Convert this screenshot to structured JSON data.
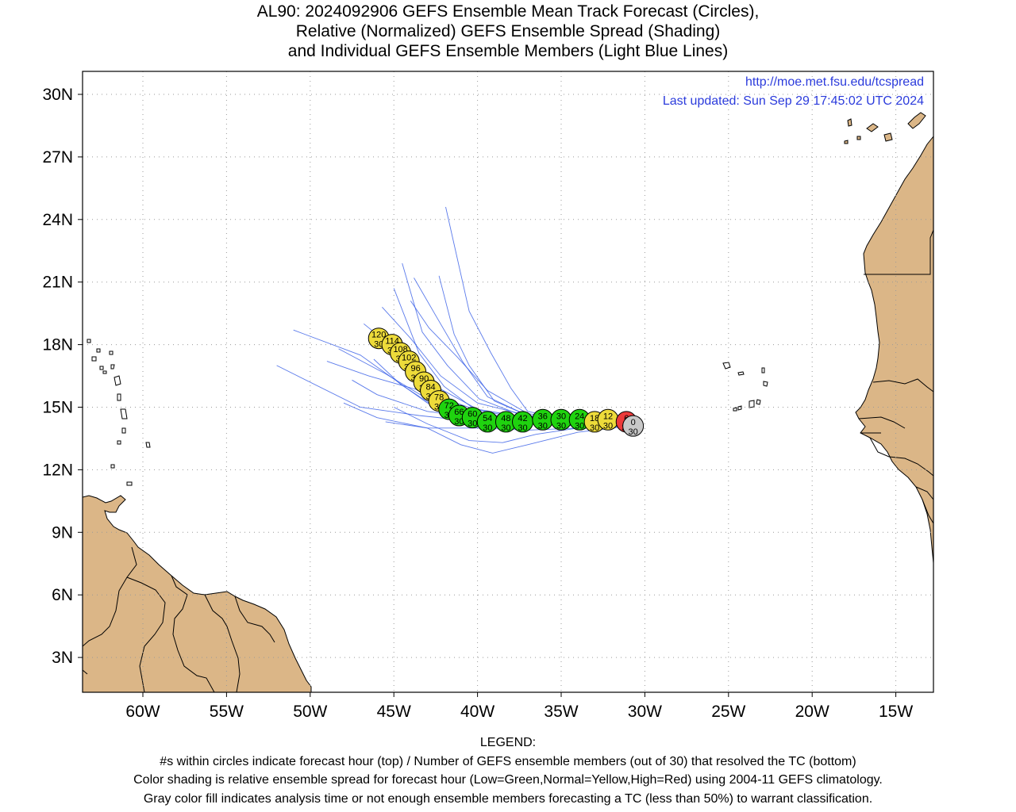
{
  "title": {
    "line1": "AL90: 2024092906 GEFS Ensemble Mean Track Forecast (Circles),",
    "line2": "Relative (Normalized) GEFS Ensemble Spread (Shading)",
    "line3": "and Individual GEFS Ensemble Members (Light Blue Lines)"
  },
  "stamp": {
    "url": "http://moe.met.fsu.edu/tcspread",
    "updated": "Last updated: Sun Sep 29 17:45:02 UTC 2024"
  },
  "axes": {
    "lat_labels": [
      "30N",
      "27N",
      "24N",
      "21N",
      "18N",
      "15N",
      "12N",
      "9N",
      "6N",
      "3N"
    ],
    "lon_labels": [
      "60W",
      "55W",
      "50W",
      "45W",
      "40W",
      "35W",
      "30W",
      "25W",
      "20W",
      "15W"
    ]
  },
  "legend": {
    "heading": "LEGEND:",
    "line1": "#s within circles indicate forecast hour (top) / Number of GEFS ensemble members (out of 30) that resolved the TC (bottom)",
    "line2": "Color shading is relative ensemble spread for forecast hour (Low=Green,Normal=Yellow,High=Red) using 2004-11 GEFS climatology.",
    "line3": "Gray color fill indicates analysis time or not enough ensemble members forecasting a TC (less than 50%) to warrant classification."
  },
  "colors": {
    "land": "#dbb687",
    "member_track": "#3d63e8",
    "spread_low": "#1fd30f",
    "spread_normal": "#eddb3a",
    "spread_high": "#ec3a3a",
    "analysis": "#c8c8c8",
    "stamp_text": "#2b3bdc"
  },
  "mean_track": [
    {
      "hour": "0",
      "members": "30",
      "lon": -30.7,
      "lat": 14.1,
      "spread": "analysis"
    },
    {
      "hour": "6",
      "members": "30",
      "lon": -31.1,
      "lat": 14.3,
      "spread": "high"
    },
    {
      "hour": "12",
      "members": "30",
      "lon": -32.2,
      "lat": 14.4,
      "spread": "normal"
    },
    {
      "hour": "18",
      "members": "30",
      "lon": -33.0,
      "lat": 14.3,
      "spread": "normal"
    },
    {
      "hour": "24",
      "members": "30",
      "lon": -33.9,
      "lat": 14.4,
      "spread": "low"
    },
    {
      "hour": "30",
      "members": "30",
      "lon": -35.0,
      "lat": 14.4,
      "spread": "low"
    },
    {
      "hour": "36",
      "members": "30",
      "lon": -36.1,
      "lat": 14.4,
      "spread": "low"
    },
    {
      "hour": "42",
      "members": "30",
      "lon": -37.3,
      "lat": 14.3,
      "spread": "low"
    },
    {
      "hour": "48",
      "members": "30",
      "lon": -38.3,
      "lat": 14.3,
      "spread": "low"
    },
    {
      "hour": "54",
      "members": "30",
      "lon": -39.4,
      "lat": 14.3,
      "spread": "low"
    },
    {
      "hour": "60",
      "members": "30",
      "lon": -40.3,
      "lat": 14.5,
      "spread": "low"
    },
    {
      "hour": "66",
      "members": "30",
      "lon": -41.1,
      "lat": 14.6,
      "spread": "low"
    },
    {
      "hour": "72",
      "members": "30",
      "lon": -41.7,
      "lat": 14.9,
      "spread": "low"
    },
    {
      "hour": "78",
      "members": "30",
      "lon": -42.3,
      "lat": 15.3,
      "spread": "normal"
    },
    {
      "hour": "84",
      "members": "30",
      "lon": -42.8,
      "lat": 15.8,
      "spread": "normal"
    },
    {
      "hour": "90",
      "members": "30",
      "lon": -43.2,
      "lat": 16.2,
      "spread": "normal"
    },
    {
      "hour": "96",
      "members": "30",
      "lon": -43.7,
      "lat": 16.7,
      "spread": "normal"
    },
    {
      "hour": "102",
      "members": "30",
      "lon": -44.1,
      "lat": 17.2,
      "spread": "normal"
    },
    {
      "hour": "108",
      "members": "30",
      "lon": -44.6,
      "lat": 17.6,
      "spread": "normal"
    },
    {
      "hour": "114",
      "members": "30",
      "lon": -45.1,
      "lat": 18.0,
      "spread": "normal"
    },
    {
      "hour": "120",
      "members": "30",
      "lon": -45.9,
      "lat": 18.3,
      "spread": "normal"
    }
  ],
  "member_tracks": [
    [
      [
        -30.9,
        14.1
      ],
      [
        -34,
        14.2
      ],
      [
        -37,
        14.4
      ],
      [
        -40,
        14.6
      ],
      [
        -43,
        15.2
      ],
      [
        -47,
        17.5
      ],
      [
        -51,
        18.7
      ]
    ],
    [
      [
        -30.9,
        14.1
      ],
      [
        -34,
        14.3
      ],
      [
        -37,
        14.5
      ],
      [
        -40,
        14.9
      ],
      [
        -42.5,
        16.0
      ],
      [
        -44.5,
        17.5
      ],
      [
        -46.8,
        19.0
      ]
    ],
    [
      [
        -30.9,
        14.1
      ],
      [
        -34,
        14.1
      ],
      [
        -37,
        14.3
      ],
      [
        -40,
        14.8
      ],
      [
        -42,
        16.0
      ],
      [
        -43.5,
        17.6
      ],
      [
        -45.0,
        20.7
      ]
    ],
    [
      [
        -30.9,
        14.1
      ],
      [
        -34,
        14.2
      ],
      [
        -37,
        14.6
      ],
      [
        -39,
        15.3
      ],
      [
        -40.5,
        17.0
      ],
      [
        -41.4,
        18.5
      ],
      [
        -42.3,
        21.3
      ]
    ],
    [
      [
        -30.9,
        14.1
      ],
      [
        -34,
        14.3
      ],
      [
        -37,
        14.8
      ],
      [
        -38,
        15.9
      ],
      [
        -39.2,
        17.6
      ],
      [
        -40.5,
        19.6
      ],
      [
        -41.9,
        24.6
      ]
    ],
    [
      [
        -30.9,
        14.1
      ],
      [
        -34,
        14.3
      ],
      [
        -37,
        14.6
      ],
      [
        -39.4,
        15.5
      ],
      [
        -40.9,
        17.2
      ],
      [
        -42.5,
        19.4
      ],
      [
        -43.8,
        21.2
      ]
    ],
    [
      [
        -30.9,
        14.1
      ],
      [
        -34,
        14.2
      ],
      [
        -37,
        14.5
      ],
      [
        -39.9,
        15.4
      ],
      [
        -41.8,
        17.0
      ],
      [
        -43.3,
        18.6
      ],
      [
        -44.5,
        21.9
      ]
    ],
    [
      [
        -30.9,
        14.1
      ],
      [
        -34,
        14.2
      ],
      [
        -37,
        14.4
      ],
      [
        -40.2,
        14.9
      ],
      [
        -43,
        15.7
      ],
      [
        -46.5,
        16.5
      ],
      [
        -49,
        17.2
      ]
    ],
    [
      [
        -30.9,
        14.1
      ],
      [
        -34,
        14.3
      ],
      [
        -37,
        14.3
      ],
      [
        -40,
        14.5
      ],
      [
        -43,
        14.8
      ],
      [
        -46,
        15.6
      ],
      [
        -47.5,
        16.3
      ]
    ],
    [
      [
        -30.9,
        14.1
      ],
      [
        -34,
        14.2
      ],
      [
        -37,
        14.3
      ],
      [
        -40,
        14.3
      ],
      [
        -43.5,
        14.6
      ],
      [
        -47,
        15.0
      ],
      [
        -52,
        17.0
      ]
    ],
    [
      [
        -30.9,
        14.1
      ],
      [
        -34,
        14.0
      ],
      [
        -37,
        13.9
      ],
      [
        -40,
        14.0
      ],
      [
        -43,
        14.0
      ],
      [
        -46,
        14.5
      ],
      [
        -48,
        15.2
      ]
    ],
    [
      [
        -30.9,
        14.1
      ],
      [
        -34,
        14.0
      ],
      [
        -36.5,
        13.7
      ],
      [
        -38.5,
        13.3
      ],
      [
        -40.5,
        13.4
      ],
      [
        -43.0,
        14.2
      ],
      [
        -45,
        15.0
      ]
    ],
    [
      [
        -30.9,
        14.1
      ],
      [
        -34,
        13.8
      ],
      [
        -37,
        13.2
      ],
      [
        -39.1,
        12.8
      ],
      [
        -41,
        13.2
      ],
      [
        -43,
        14.0
      ],
      [
        -45.5,
        14.3
      ]
    ],
    [
      [
        -30.9,
        14.1
      ],
      [
        -34,
        14.3
      ],
      [
        -37,
        14.6
      ],
      [
        -40,
        15.2
      ],
      [
        -42.2,
        16.5
      ],
      [
        -44.0,
        18.3
      ],
      [
        -45.7,
        19.8
      ]
    ],
    [
      [
        -30.9,
        14.1
      ],
      [
        -34,
        14.2
      ],
      [
        -37,
        14.4
      ],
      [
        -40,
        14.6
      ],
      [
        -42.8,
        15.3
      ],
      [
        -45.5,
        16.6
      ],
      [
        -48.3,
        17.8
      ]
    ],
    [
      [
        -30.9,
        14.1
      ],
      [
        -34,
        14.1
      ],
      [
        -37,
        14.2
      ],
      [
        -40,
        14.4
      ],
      [
        -42.5,
        15.0
      ],
      [
        -44.6,
        16.1
      ],
      [
        -46.2,
        17.3
      ]
    ],
    [
      [
        -30.9,
        14.1
      ],
      [
        -34,
        14.3
      ],
      [
        -37,
        14.7
      ],
      [
        -39.4,
        15.8
      ],
      [
        -41.2,
        17.4
      ],
      [
        -42.9,
        18.8
      ],
      [
        -44.0,
        20.1
      ]
    ]
  ]
}
